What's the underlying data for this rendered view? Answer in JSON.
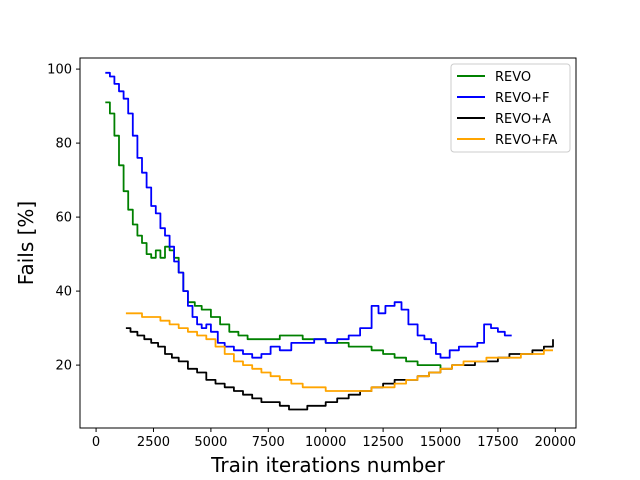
{
  "chart_data": {
    "type": "line",
    "title": "",
    "xlabel": "Train iterations number",
    "ylabel": "Fails [%]",
    "xlim": [
      -700,
      20900
    ],
    "ylim": [
      3,
      103
    ],
    "x_ticks": [
      0,
      2500,
      5000,
      7500,
      10000,
      12500,
      15000,
      17500,
      20000
    ],
    "x_tick_labels": [
      "0",
      "2500",
      "5000",
      "7500",
      "10000",
      "12500",
      "15000",
      "17500",
      "20000"
    ],
    "y_ticks": [
      20,
      40,
      60,
      80,
      100
    ],
    "y_tick_labels": [
      "20",
      "40",
      "60",
      "80",
      "100"
    ],
    "grid": false,
    "legend_position": "top-right",
    "series": [
      {
        "name": "REVO",
        "color": "#008000",
        "x": [
          400,
          600,
          800,
          1000,
          1200,
          1400,
          1600,
          1800,
          2000,
          2200,
          2400,
          2600,
          2800,
          3000,
          3200,
          3400,
          3600,
          3800,
          4000,
          4300,
          4600,
          5000,
          5400,
          5800,
          6200,
          6600,
          7000,
          7500,
          8000,
          8500,
          9000,
          9500,
          10000,
          10500,
          11000,
          11500,
          12000,
          12500,
          13000,
          13500,
          14000,
          14500,
          15000
        ],
        "values": [
          91,
          88,
          82,
          74,
          67,
          62,
          58,
          55,
          53,
          50,
          49,
          51,
          49,
          52,
          51,
          49,
          45,
          40,
          37,
          36,
          35,
          33,
          31,
          29,
          28,
          27,
          27,
          27,
          28,
          28,
          27,
          27,
          26,
          26,
          25,
          25,
          24,
          23,
          22,
          21,
          20,
          20,
          19
        ]
      },
      {
        "name": "REVO+F",
        "color": "#0000ff",
        "x": [
          400,
          600,
          800,
          1000,
          1200,
          1400,
          1600,
          1800,
          2000,
          2200,
          2400,
          2600,
          2800,
          3000,
          3200,
          3400,
          3600,
          3800,
          4000,
          4200,
          4400,
          4600,
          4800,
          5000,
          5300,
          5600,
          6000,
          6400,
          6800,
          7200,
          7600,
          8000,
          8500,
          9000,
          9500,
          10000,
          10500,
          11000,
          11500,
          12000,
          12300,
          12600,
          13000,
          13300,
          13600,
          14000,
          14300,
          14600,
          14800,
          15000,
          15400,
          15800,
          16200,
          16600,
          16900,
          17200,
          17500,
          17800,
          18100
        ],
        "values": [
          99,
          98,
          96,
          94,
          92,
          88,
          82,
          76,
          72,
          68,
          63,
          61,
          57,
          55,
          52,
          48,
          45,
          40,
          36,
          33,
          31,
          30,
          31,
          29,
          26,
          25,
          24,
          23,
          22,
          23,
          25,
          24,
          26,
          26,
          27,
          26,
          27,
          28,
          30,
          36,
          34,
          36,
          37,
          35,
          31,
          28,
          27,
          26,
          23,
          22,
          24,
          25,
          25,
          26,
          31,
          30,
          29,
          28,
          28
        ]
      },
      {
        "name": "REVO+A",
        "color": "#000000",
        "x": [
          1300,
          1500,
          1800,
          2100,
          2400,
          2700,
          3000,
          3300,
          3600,
          4000,
          4400,
          4800,
          5200,
          5600,
          6000,
          6400,
          6800,
          7200,
          7600,
          8000,
          8400,
          8800,
          9200,
          9600,
          10000,
          10500,
          11000,
          11500,
          12000,
          12500,
          13000,
          13500,
          14000,
          14500,
          15000,
          15500,
          16000,
          16500,
          17000,
          17500,
          18000,
          18500,
          19000,
          19500,
          19900
        ],
        "values": [
          30,
          29,
          28,
          27,
          26,
          25,
          23,
          22,
          21,
          19,
          18,
          16,
          15,
          14,
          13,
          12,
          11,
          10,
          10,
          9,
          8,
          8,
          9,
          9,
          10,
          11,
          12,
          13,
          14,
          15,
          16,
          16,
          17,
          18,
          19,
          20,
          20,
          21,
          21,
          22,
          23,
          23,
          24,
          25,
          27
        ]
      },
      {
        "name": "REVO+FA",
        "color": "#ffa500",
        "x": [
          1300,
          1600,
          2000,
          2400,
          2800,
          3200,
          3600,
          4000,
          4400,
          4800,
          5200,
          5600,
          6000,
          6400,
          6800,
          7200,
          7600,
          8000,
          8500,
          9000,
          9500,
          10000,
          10500,
          11000,
          11500,
          12000,
          12500,
          13000,
          13500,
          14000,
          14500,
          15000,
          15500,
          16000,
          16500,
          17000,
          17500,
          18000,
          18500,
          19000,
          19500,
          19900
        ],
        "values": [
          34,
          34,
          33,
          33,
          32,
          31,
          30,
          29,
          28,
          27,
          25,
          23,
          21,
          20,
          19,
          18,
          17,
          16,
          15,
          14,
          14,
          13,
          13,
          13,
          13,
          14,
          14,
          15,
          16,
          17,
          18,
          19,
          20,
          21,
          21,
          22,
          22,
          22,
          23,
          23,
          24,
          24
        ]
      }
    ]
  }
}
